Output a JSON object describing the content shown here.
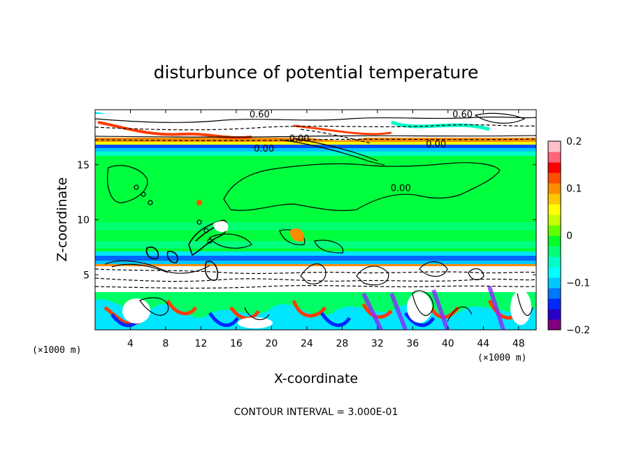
{
  "chart_data": {
    "type": "heatmap",
    "title": "disturbunce of potential temperature",
    "xlabel": "X-coordinate",
    "ylabel": "Z-coordinate",
    "x_unit": "(×1000 m)",
    "z_unit": "(×1000 m)",
    "xlim": [
      0,
      50
    ],
    "ylim": [
      0,
      20
    ],
    "x_ticks": [
      "4",
      "8",
      "12",
      "16",
      "20",
      "24",
      "28",
      "32",
      "36",
      "40",
      "44",
      "48"
    ],
    "x_tick_values": [
      4,
      8,
      12,
      16,
      20,
      24,
      28,
      32,
      36,
      40,
      44,
      48
    ],
    "y_ticks": [
      "5",
      "10",
      "15"
    ],
    "y_tick_values": [
      5,
      10,
      15
    ],
    "colorbar": {
      "range": [
        -0.2,
        0.2
      ],
      "ticks": [
        "0.2",
        "0.1",
        "0",
        "−0.1",
        "−0.2"
      ],
      "tick_values": [
        0.2,
        0.1,
        0,
        -0.1,
        -0.2
      ],
      "colors": [
        "#800080",
        "#2800c8",
        "#0028ff",
        "#0078ff",
        "#00c8ff",
        "#00ffff",
        "#00ffc8",
        "#00ff78",
        "#00ff28",
        "#64ff00",
        "#c8ff00",
        "#ffff00",
        "#ffc800",
        "#ff8c00",
        "#ff5000",
        "#ff0000",
        "#ff6478",
        "#ffc0cb"
      ]
    },
    "contour_labels": [
      {
        "text": "0.60",
        "x": 17.5,
        "z": 19.3
      },
      {
        "text": "0.60",
        "x": 40.5,
        "z": 19.3
      },
      {
        "text": "0.00",
        "x": 18.0,
        "z": 16.2
      },
      {
        "text": "0.00",
        "x": 22.0,
        "z": 17.1
      },
      {
        "text": "0.00",
        "x": 37.5,
        "z": 16.6
      },
      {
        "text": "0.00",
        "x": 33.5,
        "z": 12.6
      }
    ],
    "contour_interval_text": "CONTOUR INTERVAL = 3.000E-01",
    "grid": false
  }
}
